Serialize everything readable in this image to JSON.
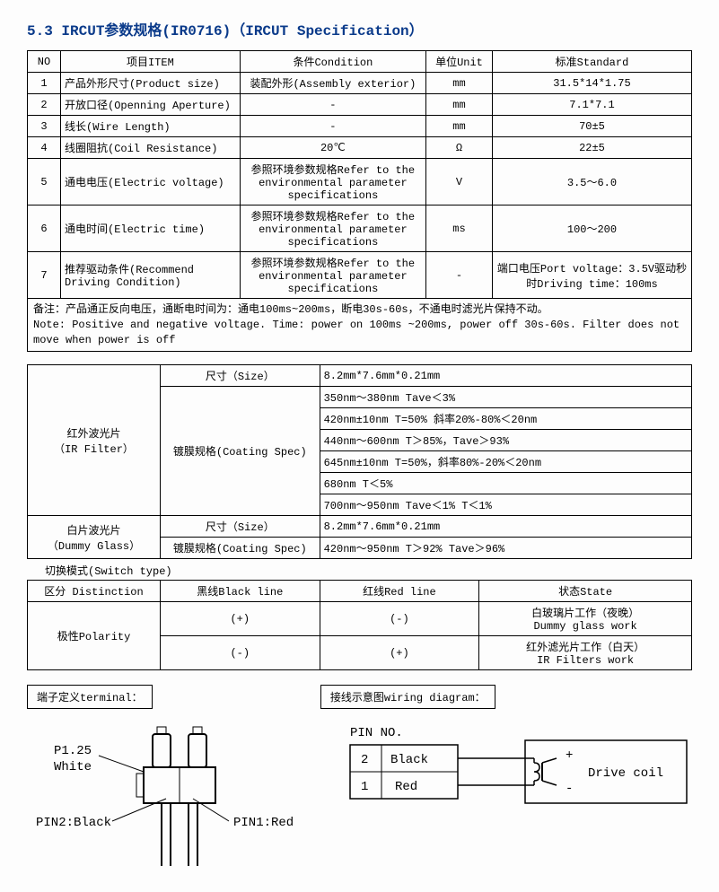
{
  "heading": "5.3 IRCUT参数规格(IR0716)（IRCUT Specification）",
  "table1": {
    "headers": {
      "no": "NO",
      "item": "项目ITEM",
      "cond": "条件Condition",
      "unit": "单位Unit",
      "std": "标准Standard"
    },
    "rows": [
      {
        "no": "1",
        "item": "产品外形尺寸(Product size)",
        "cond": "装配外形(Assembly exterior)",
        "unit": "mm",
        "std": "31.5*14*1.75"
      },
      {
        "no": "2",
        "item": "开放口径(Openning Aperture)",
        "cond": "-",
        "unit": "mm",
        "std": "7.1*7.1"
      },
      {
        "no": "3",
        "item": "线长(Wire Length)",
        "cond": "-",
        "unit": "mm",
        "std": "70±5"
      },
      {
        "no": "4",
        "item": "线圈阻抗(Coil Resistance)",
        "cond": "20℃",
        "unit": "Ω",
        "std": "22±5"
      },
      {
        "no": "5",
        "item": "通电电压(Electric voltage)",
        "cond": "参照环境参数规格Refer to the environmental parameter specifications",
        "unit": "V",
        "std": "3.5～6.0"
      },
      {
        "no": "6",
        "item": "通电时间(Electric time)",
        "cond": "参照环境参数规格Refer to the environmental parameter specifications",
        "unit": "ms",
        "std": "100～200"
      },
      {
        "no": "7",
        "item": "推荐驱动条件(Recommend Driving Condition)",
        "cond": "参照环境参数规格Refer to the environmental parameter specifications",
        "unit": "-",
        "std": "端口电压Port voltage：3.5V驱动秒时Driving time：100ms"
      }
    ],
    "note": "备注：产品通正反向电压，通断电时间为：通电100ms~200ms，断电30s-60s，不通电时滤光片保持不动。\nNote: Positive and negative voltage. Time: power on 100ms ~200ms, power off 30s-60s. Filter does not move when power is off",
    "col_widths": [
      "5%",
      "27%",
      "28%",
      "10%",
      "30%"
    ]
  },
  "table2": {
    "ir_label": "红外波光片\n（IR Filter）",
    "dummy_label": "白片波光片\n（Dummy Glass）",
    "size_label": "尺寸（Size）",
    "coating_label": "镀膜规格(Coating Spec)",
    "ir_size": "8.2mm*7.6mm*0.21mm",
    "ir_specs": [
      "350nm～380nm    Tave＜3%",
      "420nm±10nm    T=50% 斜率20%-80%＜20nm",
      "440nm～600nm   T＞85%，Tave＞93%",
      "645nm±10nm    T=50%，斜率80%-20%＜20nm",
      "680nm         T＜5%",
      "700nm～950nm Tave＜1%  T＜1%"
    ],
    "dummy_size": "8.2mm*7.6mm*0.21mm",
    "dummy_spec": "420nm～950nm    T＞92%  Tave＞96%",
    "col_widths": [
      "20%",
      "24%",
      "56%"
    ]
  },
  "switch_title": "切换模式(Switch type)",
  "table3": {
    "headers": {
      "dist": "区分 Distinction",
      "black": "黑线Black line",
      "red": "红线Red line",
      "state": "状态State"
    },
    "polarity": "极性Polarity",
    "rows": [
      {
        "black": "(+)",
        "red": "(-)",
        "state": "白玻璃片工作（夜晚）\nDummy glass work"
      },
      {
        "black": "(-)",
        "red": "(+)",
        "state": "红外滤光片工作（白天）\nIR Filters work"
      }
    ],
    "col_widths": [
      "20%",
      "24%",
      "24%",
      "32%"
    ]
  },
  "terminal_label": "端子定义terminal：",
  "wiring_label": "接线示意图wiring diagram：",
  "connector": {
    "p125": "P1.25",
    "white": "White",
    "pin2": "PIN2:Black",
    "pin1": "PIN1:Red"
  },
  "wiring": {
    "pin_no": "PIN NO.",
    "pin2_n": "2",
    "pin2_c": "Black",
    "pin1_n": "1",
    "pin1_c": "Red",
    "coil": "Drive coil",
    "plus": "+",
    "minus": "-"
  }
}
